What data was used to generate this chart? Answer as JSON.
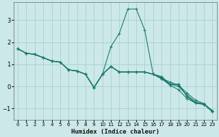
{
  "xlabel": "Humidex (Indice chaleur)",
  "bg_color": "#cce8e8",
  "grid_color": "#aacfcf",
  "line_color": "#1a7a6e",
  "xlim": [
    -0.5,
    23.5
  ],
  "ylim": [
    -1.5,
    3.8
  ],
  "xticks": [
    0,
    1,
    2,
    3,
    4,
    5,
    6,
    7,
    8,
    9,
    10,
    11,
    12,
    13,
    14,
    15,
    16,
    17,
    18,
    19,
    20,
    21,
    22,
    23
  ],
  "yticks": [
    -1,
    0,
    1,
    2,
    3
  ],
  "series": [
    [
      1.7,
      1.5,
      1.45,
      1.3,
      1.15,
      1.1,
      0.75,
      0.7,
      0.55,
      -0.05,
      0.55,
      0.9,
      0.65,
      0.65,
      0.65,
      0.65,
      0.55,
      0.45,
      0.1,
      0.1,
      -0.45,
      -0.75,
      -0.8,
      -1.1
    ],
    [
      1.7,
      1.5,
      1.45,
      1.3,
      1.15,
      1.1,
      0.75,
      0.7,
      0.55,
      -0.05,
      0.55,
      1.8,
      2.4,
      3.5,
      3.5,
      2.55,
      0.55,
      0.4,
      0.1,
      0.1,
      -0.45,
      -0.75,
      -0.8,
      -1.1
    ],
    [
      1.7,
      1.5,
      1.45,
      1.3,
      1.15,
      1.1,
      0.75,
      0.7,
      0.55,
      -0.05,
      0.55,
      0.9,
      0.65,
      0.65,
      0.65,
      0.65,
      0.55,
      0.35,
      0.05,
      -0.15,
      -0.55,
      -0.75,
      -0.82,
      -1.15
    ],
    [
      1.7,
      1.5,
      1.45,
      1.3,
      1.15,
      1.1,
      0.75,
      0.7,
      0.55,
      -0.05,
      0.55,
      0.9,
      0.65,
      0.65,
      0.65,
      0.65,
      0.55,
      0.35,
      0.2,
      0.05,
      -0.3,
      -0.62,
      -0.78,
      -1.12
    ],
    [
      1.7,
      1.5,
      1.45,
      1.3,
      1.15,
      1.1,
      0.75,
      0.7,
      0.55,
      -0.05,
      0.55,
      0.9,
      0.65,
      0.65,
      0.65,
      0.65,
      0.55,
      0.35,
      0.1,
      0.0,
      -0.4,
      -0.7,
      -0.8,
      -1.12
    ]
  ]
}
